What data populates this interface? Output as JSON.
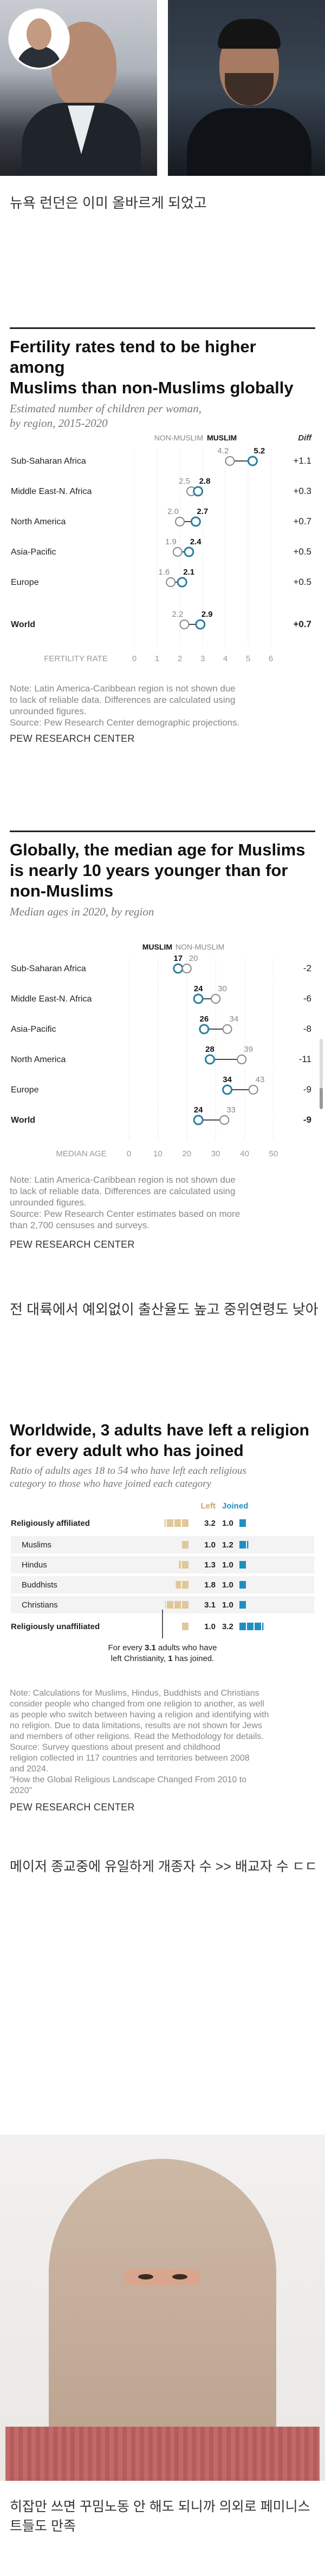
{
  "captions": {
    "c1": "뉴욕 런던은 이미 올바르게 되었고",
    "c2": "전 대륙에서 예외없이 출산율도 높고 중위연령도 낮아",
    "c3": "메이저 종교중에 유일하게 개종자 수 >> 배교자 수 ㄷㄷ",
    "c4a": "히잡만 쓰면 꾸밈노동 안 해도 되니까 의외로 페미니스",
    "c4b": "트들도 만족"
  },
  "source": "PEW RESEARCH CENTER",
  "chart1": {
    "title_l1": "Fertility rates tend to be higher among",
    "title_l2": "Muslims than non-Muslims globally",
    "subtitle_l1": "Estimated number of children per woman,",
    "subtitle_l2": "by region, 2015-2020",
    "legend_non": "NON-MUSLIM",
    "legend_mus": "MUSLIM",
    "legend_diff": "Diff",
    "axis_label": "FERTILITY RATE",
    "note_l1": "Note: Latin America-Caribbean region is not shown due",
    "note_l2": "to lack of reliable data. Differences are calculated using",
    "note_l3": "unrounded figures.",
    "note_l4": "Source: Pew Research Center demographic projections."
  },
  "chart2": {
    "title_l1": "Globally, the median age for Muslims",
    "title_l2": "is nearly 10 years younger than for",
    "title_l3": "non-Muslims",
    "subtitle": "Median ages in 2020, by region",
    "legend_mus": "MUSLIM",
    "legend_non": "NON-MUSLIM",
    "axis_label": "MEDIAN AGE",
    "note_l1": "Note: Latin America-Caribbean region is not shown due",
    "note_l2": "to lack of reliable data. Differences are calculated using",
    "note_l3": "unrounded figures.",
    "note_l4": "Source: Pew Research Center estimates based on more",
    "note_l5": "than 2,700 censuses and surveys."
  },
  "chart3": {
    "title_l1": "Worldwide, 3 adults have left a religion",
    "title_l2": "for every adult who has joined",
    "subtitle_l1": "Ratio of adults ages 18 to 54 who have left each religious",
    "subtitle_l2": "category to those who have joined each category",
    "col_left": "Left",
    "col_joined": "Joined",
    "annot_l1_pre": "For every ",
    "annot_l1_num": "3.1",
    "annot_l1_post": " adults who have",
    "annot_l2_pre": "left Christianity, ",
    "annot_l2_num": "1",
    "annot_l2_post": " has joined.",
    "note_l1": "Note: Calculations for Muslims, Hindus, Buddhists and Christians",
    "note_l2": "consider people who changed from one religion to another, as well",
    "note_l3": "as people who switch between having a religion and identifying with",
    "note_l4": "no religion. Due to data limitations, results are not shown for Jews",
    "note_l5": "and members of other religions. Read the Methodology for details.",
    "note_l6": "Source: Survey questions about present and childhood",
    "note_l7": "religion collected in 117 countries and territories between 2008",
    "note_l8": "and 2024.",
    "note_l9": "\"How the Global Religious Landscape Changed From 2010 to",
    "note_l10": "2020\""
  },
  "colors": {
    "muslim": "#2b7ea1",
    "non_muslim": "#999999",
    "left": "#e0c79a",
    "joined": "#1f8fbf"
  },
  "chart_data": [
    {
      "type": "scatter",
      "title": "Fertility rates tend to be higher among Muslims than non-Muslims globally",
      "subtitle": "Estimated number of children per woman, by region, 2015-2020",
      "xlabel": "FERTILITY RATE",
      "xlim": [
        0,
        6
      ],
      "xticks": [
        "0",
        "1",
        "2",
        "3",
        "4",
        "5",
        "6"
      ],
      "categories": [
        "Sub-Saharan Africa",
        "Middle East-N. Africa",
        "North America",
        "Asia-Pacific",
        "Europe",
        "World"
      ],
      "series": [
        {
          "name": "NON-MUSLIM",
          "values": [
            4.2,
            2.5,
            2.0,
            1.9,
            1.6,
            2.2
          ]
        },
        {
          "name": "MUSLIM",
          "values": [
            5.2,
            2.8,
            2.7,
            2.4,
            2.1,
            2.9
          ]
        }
      ],
      "diff_labels": [
        "+1.1",
        "+0.3",
        "+0.7",
        "+0.5",
        "+0.5",
        "+0.7"
      ]
    },
    {
      "type": "scatter",
      "title": "Globally, the median age for Muslims is nearly 10 years younger than for non-Muslims",
      "subtitle": "Median ages in 2020, by region",
      "xlabel": "MEDIAN AGE",
      "xlim": [
        0,
        50
      ],
      "xticks": [
        "0",
        "10",
        "20",
        "30",
        "40",
        "50"
      ],
      "categories": [
        "Sub-Saharan Africa",
        "Middle East-N. Africa",
        "Asia-Pacific",
        "North America",
        "Europe",
        "World"
      ],
      "series": [
        {
          "name": "MUSLIM",
          "values": [
            17,
            24,
            26,
            28,
            34,
            24
          ]
        },
        {
          "name": "NON-MUSLIM",
          "values": [
            20,
            30,
            34,
            39,
            43,
            33
          ]
        }
      ],
      "diff_labels": [
        "-2",
        "-6",
        "-8",
        "-11",
        "-9",
        "-9"
      ]
    },
    {
      "type": "table",
      "title": "Worldwide, 3 adults have left a religion for every adult who has joined",
      "subtitle": "Ratio of adults ages 18 to 54 who have left each religious category to those who have joined each category",
      "columns": [
        "Left",
        "Joined"
      ],
      "rows": [
        {
          "label": "Religiously affiliated",
          "left": 3.2,
          "joined": 1.0,
          "bold": true
        },
        {
          "label": "Muslims",
          "left": 1.0,
          "joined": 1.2,
          "bold": false
        },
        {
          "label": "Hindus",
          "left": 1.3,
          "joined": 1.0,
          "bold": false
        },
        {
          "label": "Buddhists",
          "left": 1.8,
          "joined": 1.0,
          "bold": false
        },
        {
          "label": "Christians",
          "left": 3.1,
          "joined": 1.0,
          "bold": false
        },
        {
          "label": "Religiously unaffiliated",
          "left": 1.0,
          "joined": 3.2,
          "bold": true
        }
      ]
    }
  ]
}
